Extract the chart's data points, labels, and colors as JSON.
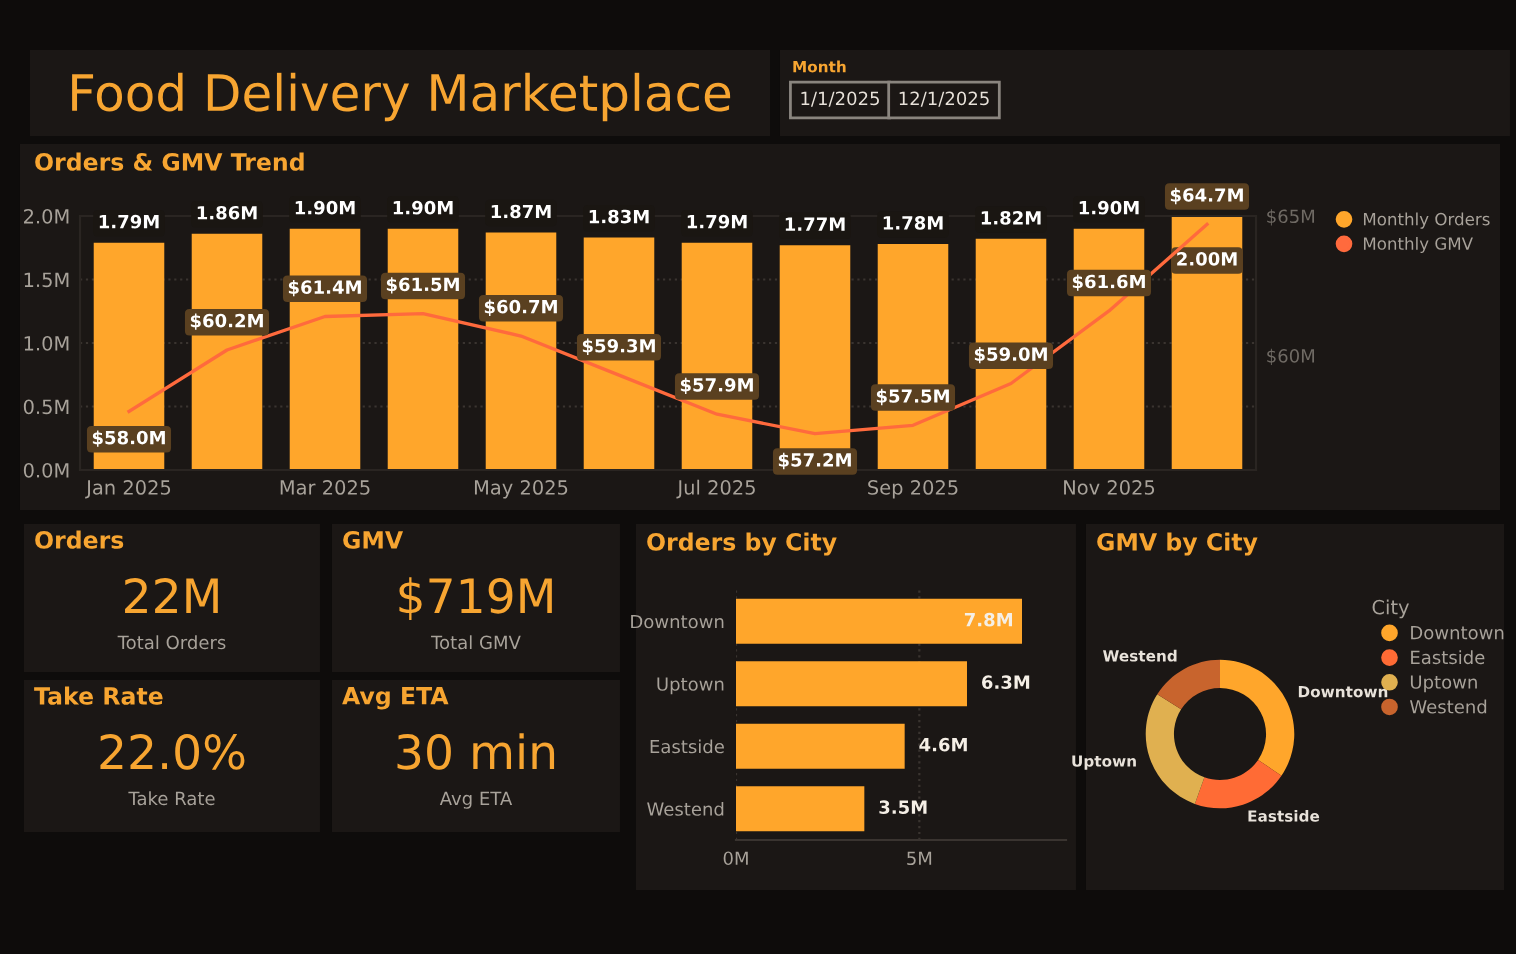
{
  "chart_data": [
    {
      "type": "other",
      "title": "Food Delivery Marketplace",
      "annotations": [
        "Month",
        "1/1/2025",
        "12/1/2025"
      ]
    },
    {
      "type": "bar",
      "title": "Orders & GMV Trend",
      "categories": [
        "Jan 2025",
        null,
        "Mar 2025",
        null,
        "May 2025",
        null,
        "Jul 2025",
        null,
        "Sep 2025",
        null,
        "Nov 2025",
        null
      ],
      "series": [
        {
          "name": "Monthly Orders",
          "type": "bar",
          "color": "#ffa62b",
          "values": [
            1.79,
            1.86,
            1.9,
            1.9,
            1.87,
            1.83,
            1.79,
            1.77,
            1.78,
            1.82,
            1.9,
            2.0
          ],
          "value_labels": [
            "1.79M",
            "1.86M",
            "1.90M",
            "1.90M",
            "1.87M",
            "1.83M",
            "1.79M",
            "1.77M",
            "1.78M",
            "1.82M",
            "1.90M",
            "2.00M"
          ]
        },
        {
          "name": "Monthly GMV",
          "type": "line",
          "axis": "y2",
          "color": "#ff6a3d",
          "values": [
            58.0,
            60.2,
            61.4,
            61.5,
            60.7,
            59.3,
            57.9,
            57.2,
            57.5,
            59.0,
            61.6,
            64.7
          ],
          "value_labels": [
            "$58.0M",
            "$60.2M",
            "$61.4M",
            "$61.5M",
            "$60.7M",
            "$59.3M",
            "$57.9M",
            "$57.2M",
            "$57.5M",
            "$59.0M",
            "$61.6M",
            "$64.7M"
          ]
        }
      ],
      "ylim": [
        0,
        2.0
      ],
      "yticks": [
        {
          "value": 0,
          "label": "0.0M"
        },
        {
          "value": 0.5,
          "label": "0.5M"
        },
        {
          "value": 1.0,
          "label": "1.0M"
        },
        {
          "value": 1.5,
          "label": "1.5M"
        },
        {
          "value": 2.0,
          "label": "2.0M"
        }
      ],
      "y2lim": [
        55.9,
        65
      ],
      "y2ticks": [
        {
          "value": 60,
          "label": "$60M"
        },
        {
          "value": 65,
          "label": "$65M"
        }
      ],
      "grid": "y",
      "legend": "top right",
      "marker": "none",
      "line_style": "solid"
    },
    {
      "type": "other",
      "title": "Orders",
      "annotations": [
        "22M",
        "Total Orders"
      ]
    },
    {
      "type": "other",
      "title": "GMV",
      "annotations": [
        "$719M",
        "Total GMV"
      ]
    },
    {
      "type": "other",
      "title": "Take Rate",
      "annotations": [
        "22.0%",
        "Take Rate"
      ]
    },
    {
      "type": "other",
      "title": "Avg ETA",
      "annotations": [
        "30 min",
        "Avg ETA"
      ]
    },
    {
      "type": "bar",
      "orientation": "horizontal",
      "title": "Orders by City",
      "categories": [
        "Downtown",
        "Uptown",
        "Eastside",
        "Westend"
      ],
      "values": [
        7.8,
        6.3,
        4.6,
        3.5
      ],
      "value_labels": [
        "7.8M",
        "6.3M",
        "4.6M",
        "3.5M"
      ],
      "color": "#ffa62b",
      "xlim": [
        0,
        9
      ],
      "xticks": [
        {
          "value": 0,
          "label": "0M"
        },
        {
          "value": 5,
          "label": "5M"
        }
      ],
      "grid": "x"
    },
    {
      "type": "donut",
      "title": "GMV by City",
      "legend_title": "City",
      "legend": "right",
      "categories": [
        "Downtown",
        "Eastside",
        "Uptown",
        "Westend"
      ],
      "values": [
        34.5,
        21.0,
        28.5,
        16.0
      ],
      "colors": [
        "#ffa62b",
        "#ff6b35",
        "#e0b050",
        "#c8642d"
      ]
    }
  ]
}
